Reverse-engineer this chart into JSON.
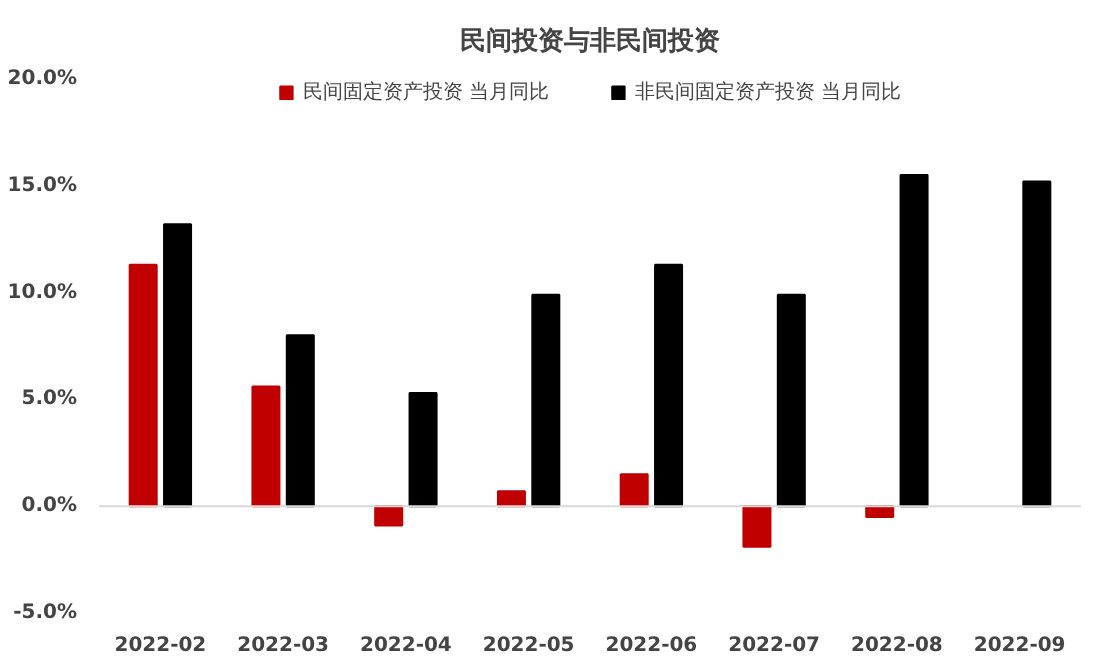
{
  "chart_data": {
    "type": "bar",
    "title": "民间投资与非民间投资",
    "categories": [
      "2022-02",
      "2022-03",
      "2022-04",
      "2022-05",
      "2022-06",
      "2022-07",
      "2022-08",
      "2022-09"
    ],
    "series": [
      {
        "name": "民间固定资产投资 当月同比",
        "color": "#c00000",
        "values": [
          11.3,
          5.6,
          -0.9,
          0.7,
          1.5,
          -1.9,
          -0.5,
          null
        ]
      },
      {
        "name": "非民间固定资产投资 当月同比",
        "color": "#000000",
        "values": [
          13.2,
          8.0,
          5.3,
          9.9,
          11.3,
          9.9,
          15.5,
          15.2
        ]
      }
    ],
    "ylim": [
      -5,
      20
    ],
    "yticks": [
      {
        "value": -5,
        "label": "-5.0%"
      },
      {
        "value": 0,
        "label": "0.0%"
      },
      {
        "value": 5,
        "label": "5.0%"
      },
      {
        "value": 10,
        "label": "10.0%"
      },
      {
        "value": 15,
        "label": "15.0%"
      },
      {
        "value": 20,
        "label": "20.0%"
      }
    ],
    "ref_lines": [
      {
        "axis": "y",
        "value": 0,
        "color": "#d9d9d9"
      }
    ],
    "grid": false,
    "legend": "top"
  }
}
